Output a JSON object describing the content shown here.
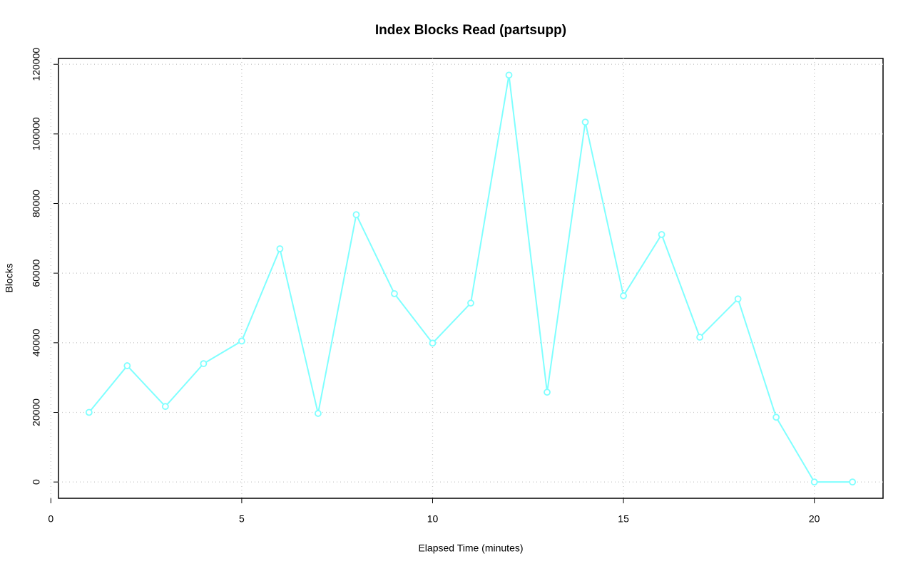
{
  "chart_data": {
    "type": "line",
    "title": "Index Blocks Read (partsupp)",
    "x_label": "Elapsed Time (minutes)",
    "y_label": "Blocks",
    "x": [
      1,
      2,
      3,
      4,
      5,
      6,
      7,
      8,
      9,
      10,
      11,
      12,
      13,
      14,
      15,
      16,
      17,
      18,
      19,
      20,
      21
    ],
    "values": [
      20000,
      33400,
      21700,
      34000,
      40500,
      67000,
      19700,
      76800,
      54100,
      39900,
      51400,
      116900,
      25800,
      103400,
      53500,
      71100,
      41600,
      52600,
      18600,
      0,
      0
    ],
    "color": "#7fffff",
    "xlim": [
      0.2,
      21.8
    ],
    "xticks": [
      0,
      5,
      10,
      15,
      20
    ],
    "ylim": [
      -4680,
      121680
    ],
    "yticks": [
      0,
      20000,
      40000,
      60000,
      80000,
      100000,
      120000
    ],
    "grid": true
  }
}
